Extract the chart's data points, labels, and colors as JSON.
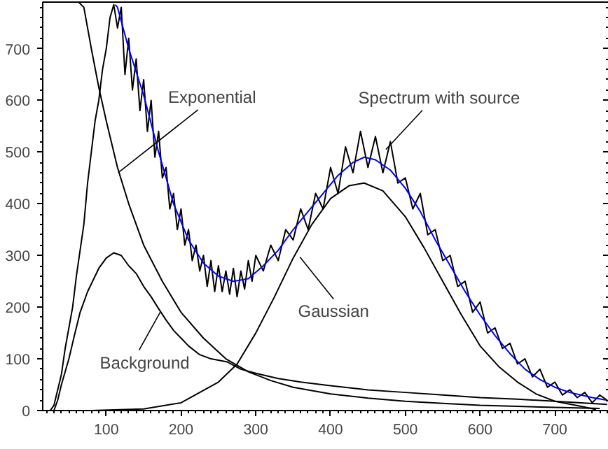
{
  "chart_data": {
    "type": "line",
    "xlim": [
      15,
      772
    ],
    "ylim": [
      0,
      790
    ],
    "xticks": [
      100,
      200,
      300,
      400,
      500,
      600,
      700
    ],
    "yticks": [
      0,
      100,
      200,
      300,
      400,
      500,
      600,
      700
    ],
    "marker": "none",
    "line_style": "solid",
    "series": [
      {
        "color": "#000000",
        "x": [
          25,
          30,
          35,
          40,
          45,
          50,
          55,
          60,
          65,
          70,
          75,
          80,
          85,
          90,
          95,
          100,
          105,
          110,
          115,
          120,
          125,
          130,
          135,
          140,
          145,
          150,
          155,
          160,
          165,
          170,
          175,
          180,
          185,
          190,
          195,
          200,
          205,
          210,
          215,
          220,
          225,
          230,
          235,
          240,
          245,
          250,
          255,
          260,
          265,
          270,
          275,
          280,
          285,
          290,
          295,
          300,
          310,
          320,
          330,
          340,
          350,
          360,
          370,
          380,
          390,
          400,
          410,
          420,
          430,
          440,
          450,
          460,
          470,
          480,
          490,
          500,
          510,
          520,
          530,
          540,
          550,
          560,
          570,
          580,
          590,
          600,
          610,
          620,
          630,
          640,
          650,
          660,
          670,
          680,
          690,
          700,
          710,
          720,
          730,
          740,
          750,
          760,
          770
        ],
        "values": [
          0,
          10,
          40,
          70,
          120,
          160,
          200,
          260,
          310,
          360,
          440,
          500,
          560,
          600,
          660,
          700,
          760,
          785,
          740,
          780,
          650,
          720,
          620,
          680,
          580,
          640,
          540,
          600,
          490,
          540,
          450,
          470,
          390,
          420,
          350,
          390,
          320,
          350,
          290,
          320,
          270,
          300,
          240,
          290,
          230,
          280,
          230,
          270,
          225,
          275,
          220,
          270,
          235,
          290,
          250,
          300,
          270,
          320,
          290,
          350,
          330,
          390,
          350,
          420,
          390,
          470,
          420,
          510,
          460,
          540,
          470,
          530,
          460,
          520,
          440,
          450,
          390,
          420,
          340,
          350,
          290,
          300,
          240,
          250,
          190,
          210,
          150,
          160,
          120,
          130,
          90,
          100,
          65,
          80,
          45,
          55,
          30,
          40,
          25,
          35,
          15,
          30,
          20
        ]
      },
      {
        "color": "#0000ff",
        "x": [
          112,
          115,
          130,
          150,
          170,
          190,
          210,
          230,
          250,
          270,
          290,
          310,
          330,
          350,
          370,
          390,
          410,
          430,
          445,
          460,
          480,
          500,
          520,
          540,
          560,
          580,
          600,
          620,
          640,
          660,
          680,
          700,
          720,
          750,
          770
        ],
        "values": [
          785,
          780,
          700,
          610,
          500,
          400,
          330,
          285,
          260,
          250,
          255,
          280,
          310,
          350,
          385,
          420,
          455,
          480,
          490,
          485,
          465,
          430,
          385,
          330,
          280,
          230,
          185,
          145,
          110,
          80,
          60,
          45,
          35,
          25,
          20
        ]
      },
      {
        "color": "#000000",
        "x": [
          63,
          70,
          80,
          90,
          100,
          115,
          130,
          150,
          175,
          200,
          230,
          260,
          290,
          320,
          350,
          400,
          450,
          500,
          550,
          600,
          650,
          700,
          760
        ],
        "values": [
          790,
          780,
          700,
          625,
          560,
          470,
          400,
          320,
          250,
          190,
          140,
          100,
          75,
          58,
          45,
          32,
          24,
          18,
          14,
          10,
          8,
          6,
          4
        ]
      },
      {
        "color": "#000000",
        "x": [
          80,
          150,
          200,
          250,
          275,
          300,
          325,
          350,
          375,
          400,
          425,
          445,
          470,
          500,
          525,
          550,
          575,
          600,
          625,
          650,
          675,
          700,
          735,
          755
        ],
        "values": [
          0,
          3,
          15,
          55,
          90,
          150,
          220,
          295,
          360,
          410,
          435,
          440,
          425,
          375,
          315,
          250,
          185,
          125,
          85,
          55,
          32,
          18,
          8,
          2
        ]
      },
      {
        "color": "#000000",
        "x": [
          30,
          35,
          40,
          50,
          57,
          65,
          75,
          82,
          90,
          100,
          110,
          120,
          130,
          140,
          150,
          160,
          170,
          180,
          190,
          200,
          210,
          225,
          240,
          262,
          280,
          300,
          330,
          360,
          400,
          450,
          500,
          550,
          600,
          650,
          700,
          770
        ],
        "values": [
          0,
          20,
          50,
          100,
          143,
          190,
          230,
          251,
          275,
          295,
          305,
          300,
          280,
          265,
          240,
          220,
          197,
          175,
          155,
          140,
          125,
          108,
          100,
          94,
          80,
          72,
          62,
          55,
          48,
          40,
          35,
          30,
          25,
          22,
          18,
          12
        ]
      }
    ],
    "annotations": [
      {
        "text": "Exponential",
        "x": 116,
        "y": 460
      },
      {
        "text": "Spectrum with source",
        "x": 474,
        "y": 505
      },
      {
        "text": "Gaussian",
        "x": 359,
        "y": 297
      },
      {
        "text": "Background",
        "x": 172,
        "y": 190
      }
    ]
  }
}
